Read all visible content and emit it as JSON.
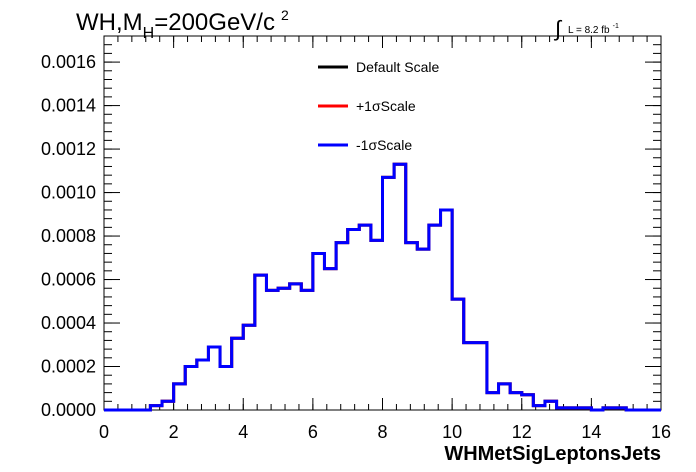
{
  "title": {
    "prefix": "WH,M",
    "subscript": "H",
    "suffix": "=200GeV/c",
    "superscript": "2"
  },
  "luminosity": {
    "integral_symbol": "∫",
    "text": "L = 8.2 fb",
    "superscript": "-1"
  },
  "colors": {
    "default": "#000000",
    "plus": "#ff0000",
    "minus": "#0000ff",
    "frame": "#000000"
  },
  "chart_data": {
    "type": "line",
    "step": true,
    "xlabel": "WHMetSigLeptonsJets",
    "ylabel": "",
    "xlim": [
      0,
      16
    ],
    "ylim": [
      0,
      0.00172
    ],
    "x_ticks": [
      "0",
      "2",
      "4",
      "6",
      "8",
      "10",
      "12",
      "14",
      "16"
    ],
    "y_ticks": [
      "0.0000",
      "0.0002",
      "0.0004",
      "0.0006",
      "0.0008",
      "0.0010",
      "0.0012",
      "0.0014",
      "0.0016"
    ],
    "legend_position": "top-center",
    "bin_edges": [
      0,
      0.333,
      0.667,
      1.0,
      1.333,
      1.667,
      2.0,
      2.333,
      2.667,
      3.0,
      3.333,
      3.667,
      4.0,
      4.333,
      4.667,
      5.0,
      5.333,
      5.667,
      6.0,
      6.333,
      6.667,
      7.0,
      7.333,
      7.667,
      8.0,
      8.333,
      8.667,
      9.0,
      9.333,
      9.667,
      10.0,
      10.333,
      10.667,
      11.0,
      11.333,
      11.667,
      12.0,
      12.333,
      12.667,
      13.0,
      13.333,
      13.667,
      14.0,
      14.333,
      14.667,
      15.0,
      15.333,
      15.667,
      16.0
    ],
    "series": [
      {
        "name": "Default Scale",
        "color_key": "default",
        "values": [
          0,
          0,
          0,
          0,
          2e-05,
          4e-05,
          0.00012,
          0.0002,
          0.00023,
          0.00029,
          0.0002,
          0.00033,
          0.00039,
          0.00062,
          0.00055,
          0.00056,
          0.00058,
          0.00055,
          0.00072,
          0.00065,
          0.00077,
          0.00083,
          0.00085,
          0.00078,
          0.00107,
          0.00113,
          0.00077,
          0.00074,
          0.00085,
          0.00092,
          0.00051,
          0.00031,
          0.00031,
          8e-05,
          0.00012,
          8e-05,
          7e-05,
          2e-05,
          4e-05,
          1e-05,
          1e-05,
          1e-05,
          0.0,
          1e-05,
          1e-05,
          0,
          0,
          0
        ]
      },
      {
        "name": "+1σScale",
        "color_key": "plus",
        "values": [
          0,
          0,
          0,
          0,
          2e-05,
          4e-05,
          0.00012,
          0.0002,
          0.00023,
          0.00029,
          0.0002,
          0.00033,
          0.00039,
          0.00062,
          0.00055,
          0.00056,
          0.00058,
          0.00055,
          0.00072,
          0.00065,
          0.00077,
          0.00083,
          0.00085,
          0.00078,
          0.00107,
          0.00113,
          0.00077,
          0.00074,
          0.00085,
          0.00092,
          0.00051,
          0.00031,
          0.00031,
          8e-05,
          0.00012,
          8e-05,
          7e-05,
          2e-05,
          4e-05,
          1e-05,
          1e-05,
          1e-05,
          0.0,
          1e-05,
          1e-05,
          0,
          0,
          0
        ]
      },
      {
        "name": "-1σScale",
        "color_key": "minus",
        "values": [
          0,
          0,
          0,
          0,
          2e-05,
          4e-05,
          0.00012,
          0.0002,
          0.00023,
          0.00029,
          0.0002,
          0.00033,
          0.00039,
          0.00062,
          0.00055,
          0.00056,
          0.00058,
          0.00055,
          0.00072,
          0.00065,
          0.00077,
          0.00083,
          0.00085,
          0.00078,
          0.00107,
          0.00113,
          0.00077,
          0.00074,
          0.00085,
          0.00092,
          0.00051,
          0.00031,
          0.00031,
          8e-05,
          0.00012,
          8e-05,
          7e-05,
          2e-05,
          4e-05,
          1e-05,
          1e-05,
          1e-05,
          0.0,
          1e-05,
          1e-05,
          0,
          0,
          0
        ]
      }
    ]
  }
}
